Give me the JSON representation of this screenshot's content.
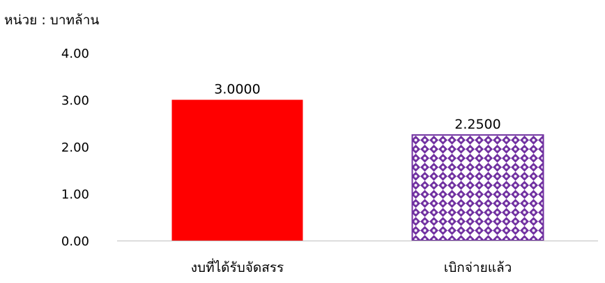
{
  "chart_data": {
    "type": "bar",
    "unit_label": "หน่วย : บาทล้าน",
    "categories": [
      "งบที่ได้รับจัดสรร",
      "เบิกจ่ายแล้ว"
    ],
    "values": [
      3.0,
      2.25
    ],
    "data_labels": [
      "3.0000",
      "2.2500"
    ],
    "ylim": [
      0,
      4
    ],
    "yticks": [
      0,
      1,
      2,
      3,
      4
    ],
    "ytick_labels": [
      "0.00",
      "1.00",
      "2.00",
      "3.00",
      "4.00"
    ],
    "grid": false,
    "legend": "none",
    "bar_styles": [
      {
        "fill": "#ff0000",
        "pattern": "solid"
      },
      {
        "fill": "#7030a0",
        "pattern": "diamond-dots"
      }
    ]
  }
}
